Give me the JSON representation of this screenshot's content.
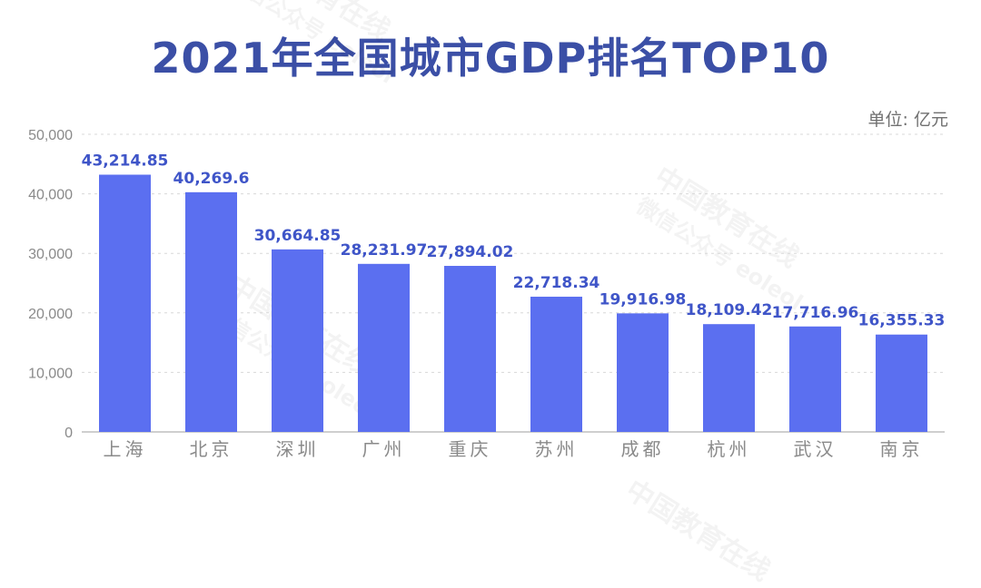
{
  "chart_data": {
    "type": "bar",
    "title": "2021年全国城市GDP排名TOP10",
    "unit_label": "单位: 亿元",
    "categories": [
      "上海",
      "北京",
      "深圳",
      "广州",
      "重庆",
      "苏州",
      "成都",
      "杭州",
      "武汉",
      "南京"
    ],
    "values": [
      43214.85,
      40269.6,
      30664.85,
      28231.97,
      27894.02,
      22718.34,
      19916.98,
      18109.42,
      17716.96,
      16355.33
    ],
    "value_labels": [
      "43,214.85",
      "40,269.6",
      "30,664.85",
      "28,231.97",
      "27,894.02",
      "22,718.34",
      "19,916.98",
      "18,109.42",
      "17,716.96",
      "16,355.33"
    ],
    "y_ticks": [
      "0",
      "10,000",
      "20,000",
      "30,000",
      "40,000",
      "50,000"
    ],
    "ylim": [
      0,
      50000
    ],
    "grid": true,
    "colors": {
      "bar": "#5b6ff0",
      "label": "#3f55c8",
      "title": "#3b4fa6",
      "grid": "#d8d8d8",
      "axis": "#bfbfbf",
      "tick": "#8a8a8a"
    }
  },
  "watermark": {
    "line1": "中国教育在线",
    "line2": "微信公众号 eoleol"
  }
}
